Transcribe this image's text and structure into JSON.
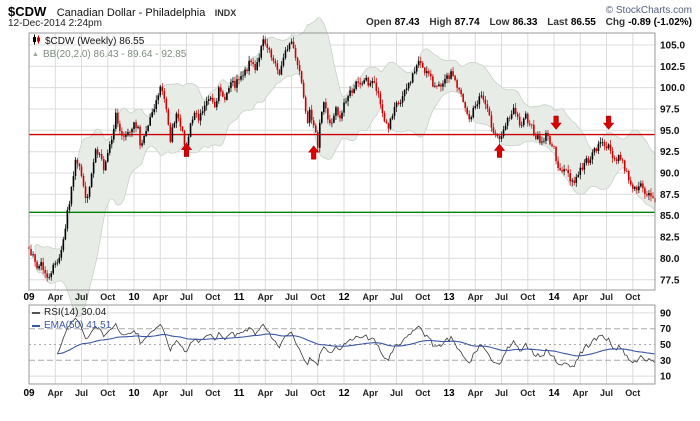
{
  "header": {
    "symbol": "$CDW",
    "name": "Canadian Dollar - Philadelphia",
    "exchange": "INDX",
    "datetime": "12-Dec-2014 2:24pm",
    "copyright": "© StockCharts.com",
    "quote": {
      "open_label": "Open",
      "open_value": "87.43",
      "high_label": "High",
      "high_value": "87.74",
      "low_label": "Low",
      "low_value": "86.33",
      "last_label": "Last",
      "last_value": "86.55",
      "chg_label": "Chg",
      "chg_value": "-0.89 (-1.02%)"
    }
  },
  "legends": {
    "price": "$CDW (Weekly) 86.55",
    "bollinger": "BB(20,2.0) 86.43 - 89.64 - 92.85",
    "rsi": "RSI(14) 30.04",
    "ema": "EMA(50) 41.51"
  },
  "colors": {
    "up_candle": "#000000",
    "down_candle": "#cc0000",
    "resistance_line": "#cc0000",
    "support_line": "#008000",
    "band_fill": "#e7ece7",
    "band_edge": "#c8d2c8",
    "rsi_line": "#3a3a3a",
    "ema_line": "#3c57a6",
    "arrow": "#dd0000",
    "grid": "#dcdcdc",
    "frame": "#999999"
  },
  "chart_data": [
    {
      "type": "candlestick",
      "title": "$CDW Weekly with Bollinger Bands (20,2.0)",
      "x_labels": [
        "09",
        "Apr",
        "Jul",
        "Oct",
        "10",
        "Apr",
        "Jul",
        "Oct",
        "11",
        "Apr",
        "Jul",
        "Oct",
        "12",
        "Apr",
        "Jul",
        "Oct",
        "13",
        "Apr",
        "Jul",
        "Oct",
        "14",
        "Apr",
        "Jul",
        "Oct"
      ],
      "x_label_weeks": [
        0,
        13,
        26,
        39,
        52,
        65,
        78,
        91,
        104,
        117,
        130,
        143,
        156,
        169,
        182,
        195,
        208,
        221,
        234,
        247,
        260,
        273,
        286,
        299
      ],
      "year_label_indexes": [
        0,
        4,
        8,
        12,
        16,
        20
      ],
      "y_ticks": [
        105.0,
        102.5,
        100.0,
        97.5,
        95.0,
        92.5,
        90.0,
        87.5,
        85.0,
        82.5,
        80.0,
        77.5
      ],
      "ylim": [
        76.3,
        106.4
      ],
      "weeks": 311,
      "last_close": 86.55,
      "bollinger": {
        "period": 20,
        "stdev": 2.0,
        "last_lower": 86.43,
        "last_mid": 89.64,
        "last_upper": 92.85
      },
      "resistance": 94.5,
      "support": 85.4,
      "arrows": [
        {
          "week": 78,
          "price": 93.5,
          "dir": "up"
        },
        {
          "week": 141,
          "price": 93.2,
          "dir": "up"
        },
        {
          "week": 233,
          "price": 93.4,
          "dir": "up"
        },
        {
          "week": 261,
          "price": 95.1,
          "dir": "down"
        },
        {
          "week": 287,
          "price": 95.1,
          "dir": "down"
        }
      ],
      "close_anchors": [
        [
          0,
          81.6
        ],
        [
          2,
          80.0
        ],
        [
          4,
          78.8
        ],
        [
          6,
          79.6
        ],
        [
          9,
          77.5
        ],
        [
          11,
          78.6
        ],
        [
          13,
          79.4
        ],
        [
          15,
          80.2
        ],
        [
          17,
          82.2
        ],
        [
          19,
          85.2
        ],
        [
          21,
          88.0
        ],
        [
          23,
          91.9
        ],
        [
          25,
          91.0
        ],
        [
          27,
          88.2
        ],
        [
          29,
          86.8
        ],
        [
          31,
          89.8
        ],
        [
          33,
          92.3
        ],
        [
          35,
          91.8
        ],
        [
          37,
          90.8
        ],
        [
          39,
          92.5
        ],
        [
          41,
          94.4
        ],
        [
          43,
          96.8
        ],
        [
          45,
          95.0
        ],
        [
          47,
          93.8
        ],
        [
          49,
          94.6
        ],
        [
          51,
          95.3
        ],
        [
          52,
          96.3
        ],
        [
          54,
          95.0
        ],
        [
          55,
          93.4
        ],
        [
          57,
          94.2
        ],
        [
          59,
          96.0
        ],
        [
          61,
          96.7
        ],
        [
          63,
          98.2
        ],
        [
          65,
          99.7
        ],
        [
          66,
          100.0
        ],
        [
          68,
          97.3
        ],
        [
          70,
          93.2
        ],
        [
          71,
          95.0
        ],
        [
          73,
          96.5
        ],
        [
          75,
          95.4
        ],
        [
          77,
          93.8
        ],
        [
          78,
          93.2
        ],
        [
          80,
          95.6
        ],
        [
          82,
          96.8
        ],
        [
          84,
          96.1
        ],
        [
          86,
          97.3
        ],
        [
          88,
          98.2
        ],
        [
          90,
          99.0
        ],
        [
          92,
          98.2
        ],
        [
          94,
          99.6
        ],
        [
          96,
          98.8
        ],
        [
          98,
          99.3
        ],
        [
          100,
          100.4
        ],
        [
          102,
          100.2
        ],
        [
          104,
          100.8
        ],
        [
          106,
          101.3
        ],
        [
          108,
          102.3
        ],
        [
          110,
          103.0
        ],
        [
          112,
          102.4
        ],
        [
          114,
          103.8
        ],
        [
          116,
          105.3
        ],
        [
          118,
          104.5
        ],
        [
          120,
          103.4
        ],
        [
          122,
          102.4
        ],
        [
          124,
          101.8
        ],
        [
          126,
          103.2
        ],
        [
          128,
          104.8
        ],
        [
          130,
          105.4
        ],
        [
          132,
          103.8
        ],
        [
          134,
          102.0
        ],
        [
          136,
          99.2
        ],
        [
          138,
          96.2
        ],
        [
          139,
          97.9
        ],
        [
          141,
          95.2
        ],
        [
          143,
          93.4
        ],
        [
          144,
          96.2
        ],
        [
          146,
          98.3
        ],
        [
          148,
          96.4
        ],
        [
          150,
          95.6
        ],
        [
          152,
          97.4
        ],
        [
          154,
          96.1
        ],
        [
          156,
          98.2
        ],
        [
          158,
          99.0
        ],
        [
          160,
          99.8
        ],
        [
          162,
          100.4
        ],
        [
          164,
          100.1
        ],
        [
          166,
          101.0
        ],
        [
          168,
          100.5
        ],
        [
          170,
          100.8
        ],
        [
          172,
          99.7
        ],
        [
          174,
          98.0
        ],
        [
          176,
          96.2
        ],
        [
          178,
          95.4
        ],
        [
          180,
          96.6
        ],
        [
          182,
          97.9
        ],
        [
          184,
          98.3
        ],
        [
          186,
          99.3
        ],
        [
          188,
          100.4
        ],
        [
          190,
          101.5
        ],
        [
          192,
          102.5
        ],
        [
          194,
          103.0
        ],
        [
          196,
          102.1
        ],
        [
          198,
          101.4
        ],
        [
          200,
          100.3
        ],
        [
          202,
          100.6
        ],
        [
          204,
          99.7
        ],
        [
          206,
          100.7
        ],
        [
          208,
          101.3
        ],
        [
          210,
          101.6
        ],
        [
          212,
          100.1
        ],
        [
          214,
          99.0
        ],
        [
          216,
          97.4
        ],
        [
          218,
          96.2
        ],
        [
          220,
          97.3
        ],
        [
          222,
          98.4
        ],
        [
          224,
          99.1
        ],
        [
          226,
          98.0
        ],
        [
          228,
          96.3
        ],
        [
          230,
          95.1
        ],
        [
          232,
          94.3
        ],
        [
          234,
          93.9
        ],
        [
          236,
          95.5
        ],
        [
          238,
          96.6
        ],
        [
          240,
          97.2
        ],
        [
          242,
          96.3
        ],
        [
          244,
          95.2
        ],
        [
          246,
          96.6
        ],
        [
          248,
          96.0
        ],
        [
          250,
          94.8
        ],
        [
          252,
          94.0
        ],
        [
          254,
          93.6
        ],
        [
          256,
          94.4
        ],
        [
          258,
          93.8
        ],
        [
          260,
          92.6
        ],
        [
          262,
          91.0
        ],
        [
          264,
          89.9
        ],
        [
          266,
          90.6
        ],
        [
          268,
          89.4
        ],
        [
          270,
          88.9
        ],
        [
          272,
          90.1
        ],
        [
          274,
          90.6
        ],
        [
          276,
          91.4
        ],
        [
          278,
          91.9
        ],
        [
          280,
          92.5
        ],
        [
          282,
          93.1
        ],
        [
          284,
          93.8
        ],
        [
          286,
          93.3
        ],
        [
          288,
          92.4
        ],
        [
          290,
          91.6
        ],
        [
          292,
          92.1
        ],
        [
          294,
          91.2
        ],
        [
          296,
          90.0
        ],
        [
          298,
          88.9
        ],
        [
          300,
          88.0
        ],
        [
          302,
          88.9
        ],
        [
          304,
          87.8
        ],
        [
          306,
          87.3
        ],
        [
          308,
          87.6
        ],
        [
          310,
          86.55
        ]
      ]
    },
    {
      "type": "line",
      "title": "RSI(14) with EMA(50)",
      "period": 14,
      "ema_period": 50,
      "last_rsi": 30.04,
      "last_ema": 41.51,
      "y_ticks": [
        90,
        70,
        50,
        30,
        10
      ],
      "ylim": [
        0,
        100
      ]
    }
  ]
}
